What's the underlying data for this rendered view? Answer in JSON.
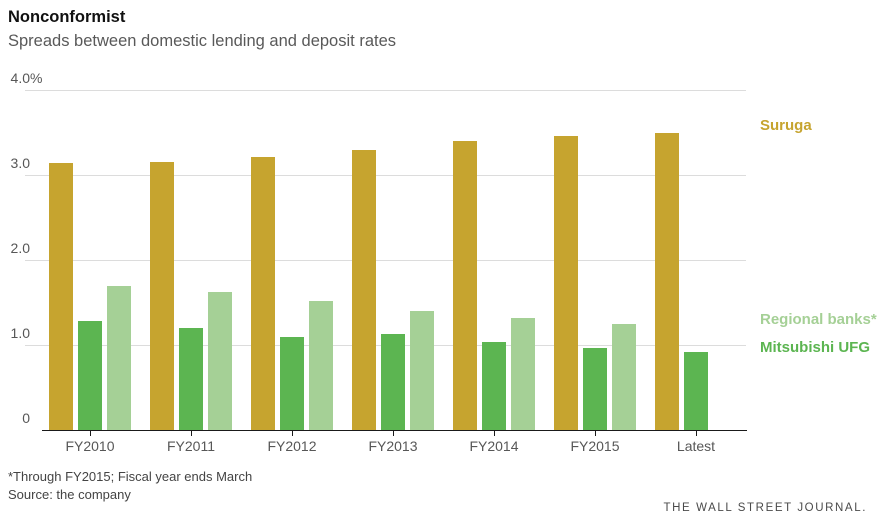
{
  "header": {
    "title": "Nonconformist",
    "subtitle": "Spreads between domestic lending and deposit rates"
  },
  "chart_data": {
    "type": "bar",
    "title": "Nonconformist",
    "subtitle": "Spreads between domestic lending and deposit rates",
    "categories": [
      "FY2010",
      "FY2011",
      "FY2012",
      "FY2013",
      "FY2014",
      "FY2015",
      "Latest"
    ],
    "series": [
      {
        "name": "Suruga",
        "color": "#c6a42f",
        "values": [
          3.14,
          3.15,
          3.21,
          3.3,
          3.4,
          3.46,
          3.5
        ]
      },
      {
        "name": "Mitsubishi UFG",
        "color": "#5cb551",
        "values": [
          1.28,
          1.2,
          1.1,
          1.13,
          1.03,
          0.96,
          0.92
        ]
      },
      {
        "name": "Regional banks*",
        "color": "#a5d096",
        "values": [
          1.7,
          1.62,
          1.52,
          1.4,
          1.32,
          1.25,
          null
        ]
      }
    ],
    "ylim": [
      0,
      4
    ],
    "yticks": [
      {
        "value": 4,
        "num": "4.0",
        "suffix": "%"
      },
      {
        "value": 3,
        "num": "3.0",
        "suffix": ""
      },
      {
        "value": 2,
        "num": "2.0",
        "suffix": ""
      },
      {
        "value": 1,
        "num": "1.0",
        "suffix": ""
      },
      {
        "value": 0,
        "num": "0",
        "suffix": ""
      }
    ],
    "grid": true,
    "legend_position": "right",
    "legend_entries": [
      {
        "label": "Suruga",
        "series_index": 0
      },
      {
        "label": "Regional banks*",
        "series_index": 2
      },
      {
        "label": "Mitsubishi UFG",
        "series_index": 1
      }
    ]
  },
  "footnotes": {
    "note": "*Through FY2015; Fiscal year ends March",
    "source": "Source: the company"
  },
  "branding": {
    "logo_text": "THE WALL STREET JOURNAL."
  }
}
